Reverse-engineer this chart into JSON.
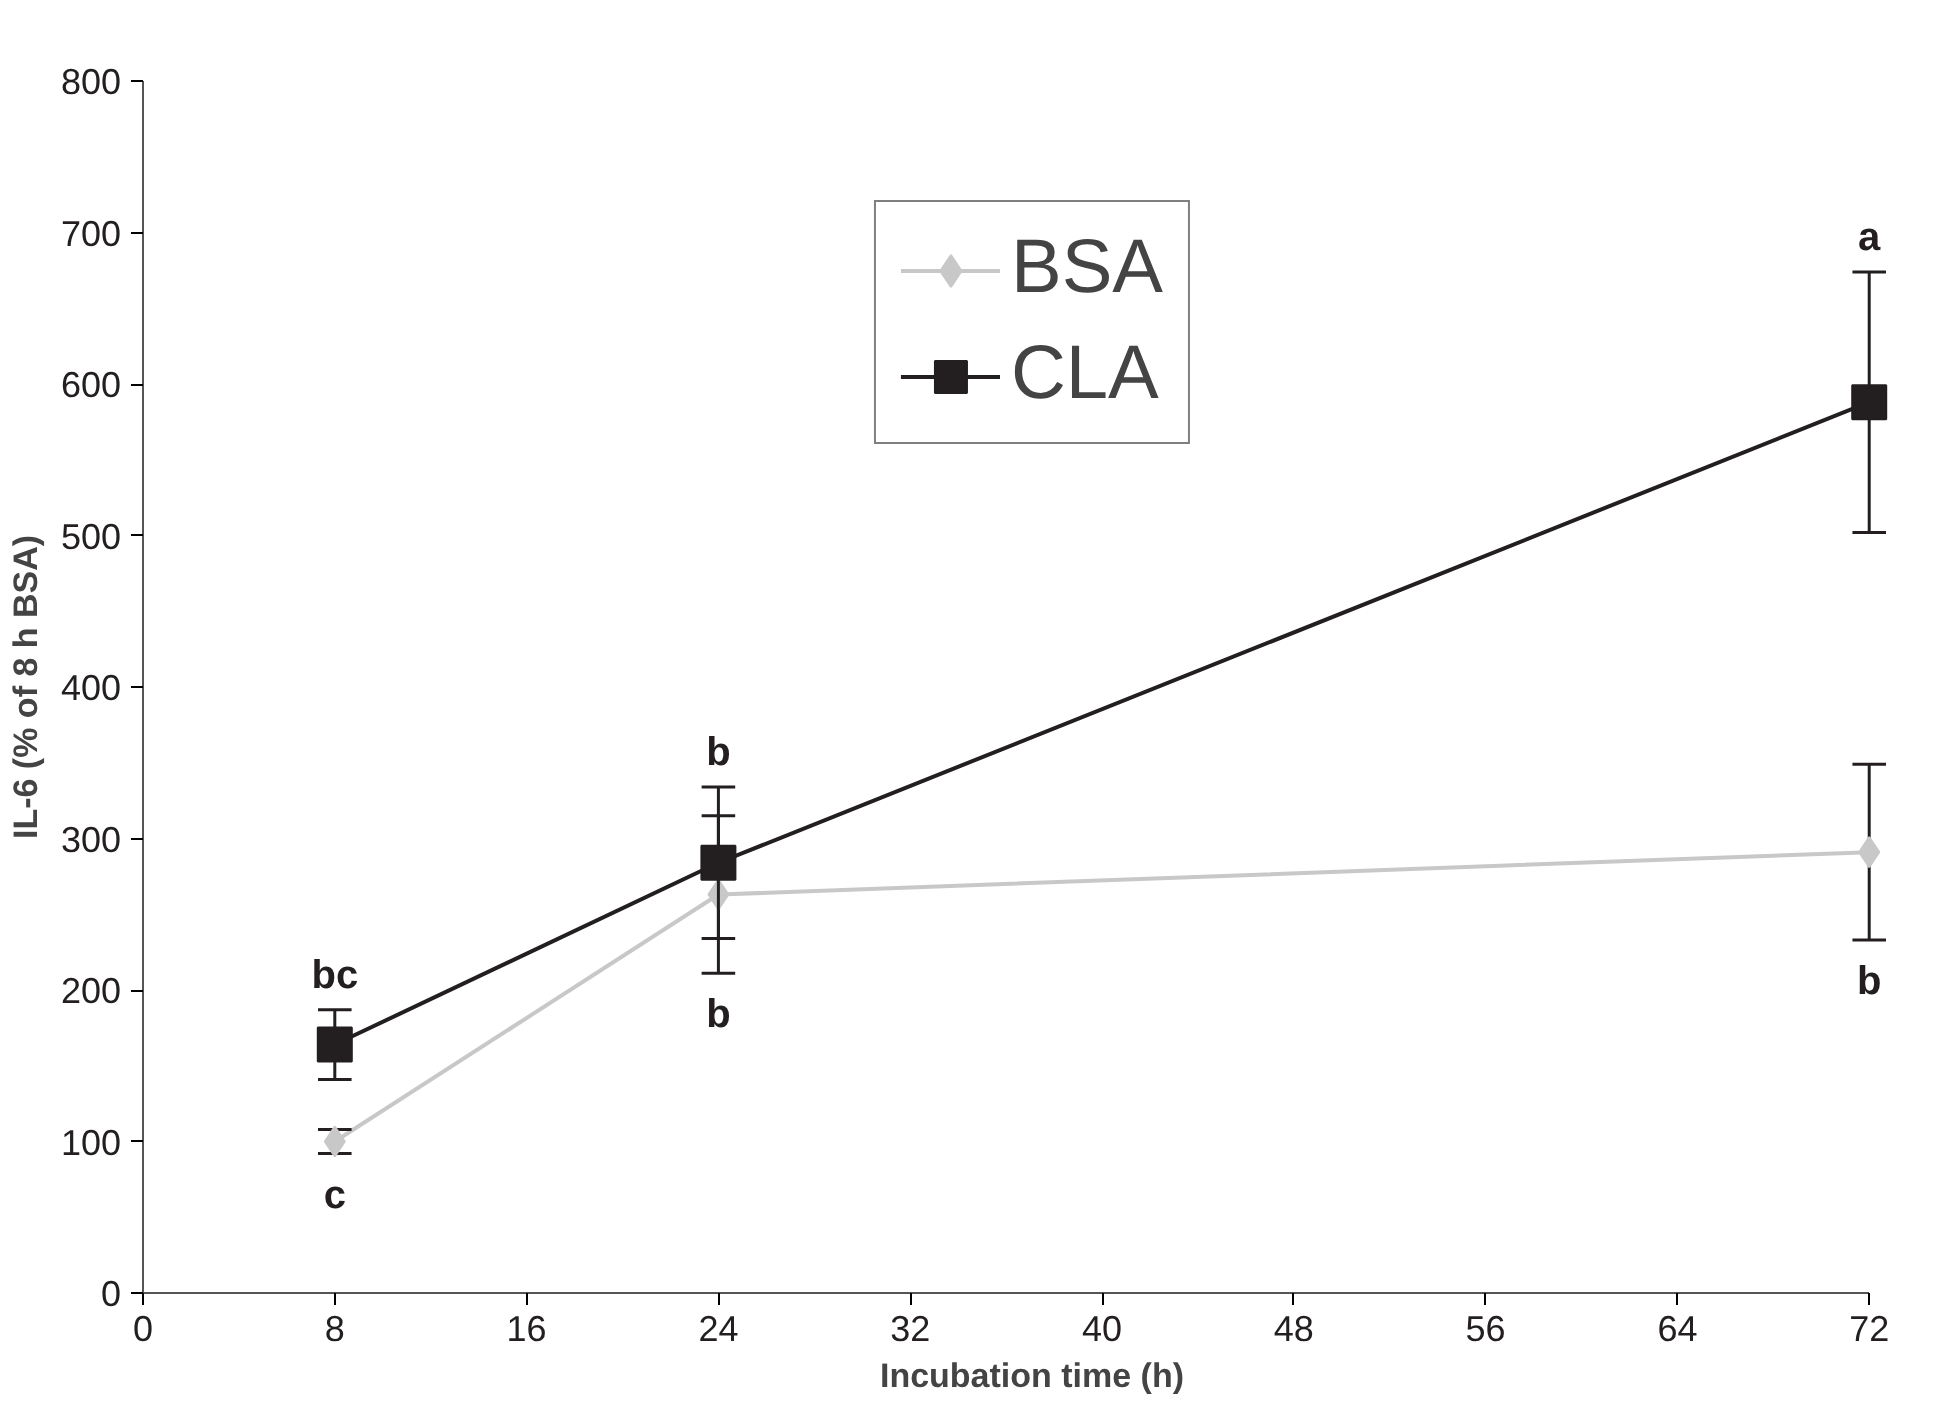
{
  "chart_data": {
    "type": "line",
    "xlabel": "Incubation time (h)",
    "ylabel": "IL-6 (% of 8 h BSA)",
    "x": [
      8,
      24,
      72
    ],
    "series": [
      {
        "name": "BSA",
        "color": "#c8c8c8",
        "marker": "diamond",
        "values": [
          100,
          263,
          291
        ],
        "errors": [
          8,
          52,
          58
        ]
      },
      {
        "name": "CLA",
        "color": "#231f20",
        "marker": "square",
        "values": [
          164,
          284,
          588
        ],
        "errors": [
          23,
          50,
          86
        ]
      }
    ],
    "xlim": [
      0,
      72
    ],
    "xticks": [
      0,
      8,
      16,
      24,
      32,
      40,
      48,
      56,
      64,
      72
    ],
    "ylim": [
      0,
      800
    ],
    "yticks": [
      0,
      100,
      200,
      300,
      400,
      500,
      600,
      700,
      800
    ],
    "grid": false,
    "legend": "top",
    "annotations": [
      {
        "text": "bc",
        "x": 8,
        "y": 187
      },
      {
        "text": "c",
        "x": 8,
        "y": 92
      },
      {
        "text": "b",
        "x": 24,
        "y": 334
      },
      {
        "text": "b",
        "x": 24,
        "y": 211
      },
      {
        "text": "a",
        "x": 72,
        "y": 674
      },
      {
        "text": "b",
        "x": 72,
        "y": 233
      }
    ]
  }
}
